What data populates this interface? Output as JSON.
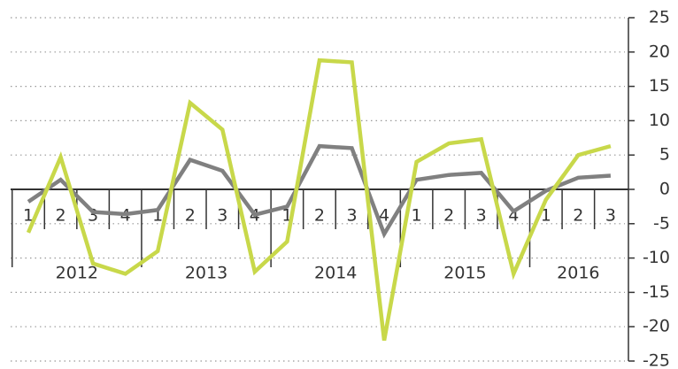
{
  "chart_data": {
    "type": "line",
    "categories": [
      "1",
      "2",
      "3",
      "4",
      "1",
      "2",
      "3",
      "4",
      "1",
      "2",
      "3",
      "4",
      "1",
      "2",
      "3",
      "4",
      "1",
      "2",
      "3"
    ],
    "years": [
      "2012",
      "2013",
      "2014",
      "2015",
      "2016"
    ],
    "series": [
      {
        "color": "#808080",
        "values": [
          -1.8,
          1.4,
          -3.3,
          -3.6,
          -3.0,
          4.3,
          2.7,
          -3.7,
          -2.5,
          6.3,
          6.0,
          -6.5,
          1.4,
          2.1,
          2.4,
          -3.2,
          -0.2,
          1.7,
          2.0
        ]
      },
      {
        "color": "#c8d84a",
        "values": [
          -6.3,
          4.7,
          -10.8,
          -12.3,
          -9.0,
          12.6,
          8.7,
          -12.0,
          -7.6,
          18.8,
          18.5,
          -22.0,
          4.0,
          6.7,
          7.3,
          -12.3,
          -1.5,
          5.0,
          6.3
        ]
      }
    ],
    "ylim": [
      -25,
      25
    ],
    "yticks": [
      -25,
      -20,
      -15,
      -10,
      -5,
      0,
      5,
      10,
      15,
      20,
      25
    ],
    "grid": true
  }
}
